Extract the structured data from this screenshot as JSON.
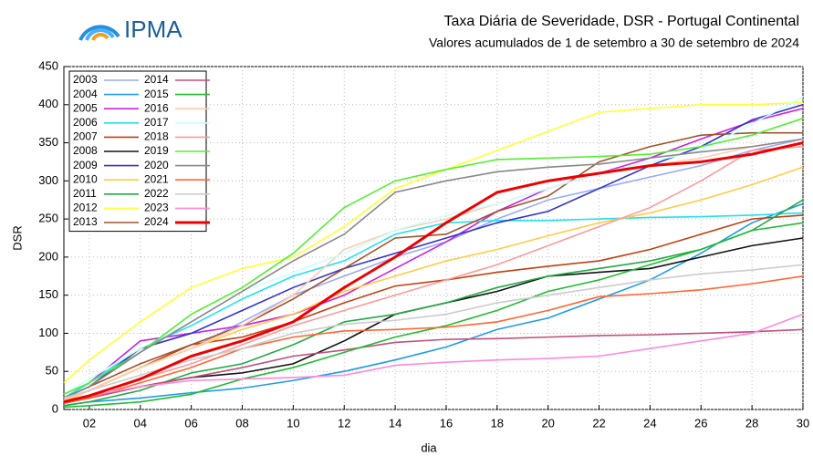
{
  "logo_text": "IPMA",
  "chart_data": {
    "type": "line",
    "title": "Taxa Diária de Severidade, DSR - Portugal Continental",
    "subtitle": "Valores acumulados de  1 de setembro a 30 de setembro de 2024",
    "x_label": "dia",
    "y_label": "DSR",
    "x": [
      1,
      2,
      4,
      6,
      8,
      10,
      12,
      14,
      16,
      18,
      20,
      22,
      24,
      26,
      28,
      30
    ],
    "xlim": [
      1,
      30
    ],
    "xticks": [
      {
        "value": 2,
        "label": "02"
      },
      {
        "value": 4,
        "label": "04"
      },
      {
        "value": 6,
        "label": "06"
      },
      {
        "value": 8,
        "label": "08"
      },
      10,
      12,
      14,
      16,
      18,
      20,
      22,
      24,
      26,
      28,
      30
    ],
    "ylim": [
      0,
      450
    ],
    "yticks": [
      0,
      50,
      100,
      150,
      200,
      250,
      300,
      350,
      400,
      450
    ],
    "grid": true,
    "legend": "top-left",
    "series": [
      {
        "name": "2003",
        "color": "#99aaff",
        "values": [
          12,
          25,
          55,
          80,
          115,
          150,
          175,
          200,
          220,
          250,
          275,
          290,
          305,
          320,
          340,
          355
        ]
      },
      {
        "name": "2004",
        "color": "#1e9be8",
        "values": [
          5,
          10,
          15,
          22,
          28,
          38,
          50,
          65,
          82,
          105,
          120,
          145,
          170,
          205,
          245,
          270
        ]
      },
      {
        "name": "2005",
        "color": "#cc22dd",
        "values": [
          15,
          35,
          90,
          100,
          110,
          125,
          150,
          185,
          220,
          260,
          290,
          310,
          330,
          355,
          378,
          395
        ]
      },
      {
        "name": "2006",
        "color": "#22e0f0",
        "values": [
          15,
          35,
          80,
          110,
          145,
          175,
          195,
          230,
          245,
          248,
          248,
          250,
          252,
          253,
          255,
          258
        ]
      },
      {
        "name": "2007",
        "color": "#c04010",
        "values": [
          12,
          25,
          55,
          85,
          95,
          115,
          140,
          162,
          170,
          180,
          188,
          195,
          210,
          230,
          250,
          255
        ]
      },
      {
        "name": "2008",
        "color": "#111111",
        "values": [
          10,
          15,
          30,
          42,
          48,
          60,
          90,
          125,
          140,
          155,
          175,
          180,
          185,
          200,
          215,
          225
        ]
      },
      {
        "name": "2009",
        "color": "#3333cc",
        "values": [
          15,
          30,
          80,
          100,
          130,
          160,
          185,
          205,
          225,
          245,
          260,
          290,
          320,
          345,
          380,
          400
        ]
      },
      {
        "name": "2010",
        "color": "#ffcc44",
        "values": [
          10,
          25,
          55,
          80,
          105,
          125,
          155,
          175,
          195,
          210,
          228,
          245,
          258,
          275,
          295,
          318
        ]
      },
      {
        "name": "2011",
        "color": "#22aa44",
        "values": [
          5,
          10,
          25,
          48,
          60,
          85,
          115,
          125,
          140,
          160,
          175,
          185,
          195,
          210,
          235,
          275
        ]
      },
      {
        "name": "2012",
        "color": "#ffff33",
        "values": [
          35,
          65,
          115,
          160,
          185,
          200,
          240,
          290,
          315,
          340,
          365,
          390,
          395,
          400,
          400,
          403
        ]
      },
      {
        "name": "2013",
        "color": "#a0522d",
        "values": [
          15,
          30,
          60,
          85,
          110,
          145,
          185,
          225,
          230,
          260,
          280,
          325,
          345,
          360,
          363,
          363
        ]
      },
      {
        "name": "2014",
        "color": "#c0507a",
        "values": [
          10,
          15,
          30,
          42,
          55,
          70,
          78,
          88,
          92,
          93,
          95,
          97,
          98,
          100,
          102,
          105
        ]
      },
      {
        "name": "2015",
        "color": "#22bb33",
        "values": [
          3,
          5,
          10,
          20,
          40,
          55,
          75,
          95,
          110,
          130,
          155,
          170,
          190,
          210,
          235,
          245
        ]
      },
      {
        "name": "2016",
        "color": "#ffccaa",
        "values": [
          12,
          25,
          55,
          80,
          110,
          150,
          210,
          235,
          250,
          270,
          290,
          310,
          320,
          330,
          345,
          355
        ]
      },
      {
        "name": "2017",
        "color": "#ccffff",
        "values": [
          20,
          40,
          80,
          115,
          155,
          180,
          205,
          235,
          255,
          270,
          290,
          310,
          325,
          340,
          375,
          410
        ]
      },
      {
        "name": "2018",
        "color": "#ff9999",
        "values": [
          10,
          18,
          40,
          60,
          85,
          110,
          130,
          150,
          170,
          190,
          215,
          240,
          265,
          300,
          340,
          345
        ]
      },
      {
        "name": "2019",
        "color": "#55ee33",
        "values": [
          20,
          35,
          75,
          125,
          160,
          205,
          265,
          300,
          315,
          328,
          330,
          332,
          335,
          345,
          360,
          382
        ]
      },
      {
        "name": "2020",
        "color": "#888888",
        "values": [
          15,
          30,
          75,
          115,
          155,
          195,
          230,
          285,
          300,
          312,
          318,
          322,
          330,
          338,
          345,
          355
        ]
      },
      {
        "name": "2021",
        "color": "#ff6633",
        "values": [
          8,
          15,
          35,
          55,
          80,
          95,
          103,
          105,
          108,
          115,
          130,
          148,
          152,
          157,
          165,
          175
        ]
      },
      {
        "name": "2022",
        "color": "#cccccc",
        "values": [
          15,
          25,
          45,
          65,
          80,
          100,
          112,
          117,
          125,
          140,
          150,
          160,
          170,
          178,
          183,
          190
        ]
      },
      {
        "name": "2023",
        "color": "#ff88dd",
        "values": [
          10,
          18,
          30,
          38,
          40,
          42,
          45,
          58,
          62,
          65,
          67,
          70,
          80,
          90,
          100,
          125
        ]
      },
      {
        "name": "2024",
        "color": "#ee0000",
        "values": [
          10,
          18,
          40,
          70,
          90,
          115,
          160,
          200,
          245,
          285,
          300,
          310,
          320,
          325,
          335,
          350
        ]
      }
    ]
  }
}
